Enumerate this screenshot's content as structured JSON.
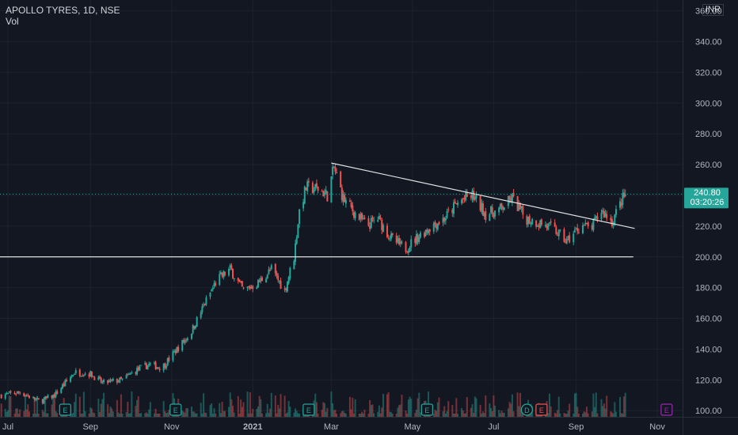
{
  "header": {
    "title": "APOLLO TYRES, 1D, NSE",
    "volume_label": "Vol"
  },
  "currency": "INR",
  "last_price": {
    "value": "240.80",
    "countdown": "03:20:26"
  },
  "colors": {
    "up": "#26a69a",
    "down": "#ef5350",
    "background": "#131722",
    "grid": "#1e222d",
    "axis_text": "#b2b5be",
    "trendline": "#e0e0e0",
    "earnings": "#26a69a",
    "earnings_down": "#ef5350",
    "dividend": "#26a69a",
    "future_event": "#9c27b0"
  },
  "chart_data": {
    "type": "candlestick",
    "symbol": "APOLLO TYRES",
    "interval": "1D",
    "exchange": "NSE",
    "yaxis": {
      "ticks": [
        "100.00",
        "120.00",
        "140.00",
        "160.00",
        "180.00",
        "200.00",
        "220.00",
        "240.00",
        "260.00",
        "280.00",
        "300.00",
        "320.00",
        "340.00",
        "360.00"
      ],
      "range": [
        96,
        367
      ]
    },
    "xaxis": {
      "ticks": [
        "Jul",
        "Sep",
        "Nov",
        "2021",
        "Mar",
        "May",
        "Jul",
        "Sep",
        "Nov"
      ],
      "range": [
        "2020-06-25",
        "2021-11-20"
      ]
    },
    "tick_dates": [
      "2020-07-01",
      "2020-09-01",
      "2020-11-01",
      "2021-01-01",
      "2021-03-01",
      "2021-05-01",
      "2021-07-01",
      "2021-09-01",
      "2021-11-01"
    ],
    "price_path": [
      [
        "2020-06-26",
        110
      ],
      [
        "2020-07-10",
        112
      ],
      [
        "2020-07-25",
        106
      ],
      [
        "2020-08-05",
        110
      ],
      [
        "2020-08-20",
        125
      ],
      [
        "2020-09-01",
        124
      ],
      [
        "2020-09-10",
        118
      ],
      [
        "2020-09-25",
        120
      ],
      [
        "2020-10-05",
        126
      ],
      [
        "2020-10-15",
        130
      ],
      [
        "2020-10-25",
        128
      ],
      [
        "2020-11-05",
        140
      ],
      [
        "2020-11-15",
        150
      ],
      [
        "2020-11-25",
        168
      ],
      [
        "2020-12-05",
        185
      ],
      [
        "2020-12-15",
        192
      ],
      [
        "2020-12-25",
        178
      ],
      [
        "2021-01-05",
        183
      ],
      [
        "2021-01-15",
        192
      ],
      [
        "2021-01-25",
        178
      ],
      [
        "2021-02-01",
        200
      ],
      [
        "2021-02-05",
        230
      ],
      [
        "2021-02-10",
        245
      ],
      [
        "2021-02-20",
        244
      ],
      [
        "2021-02-26",
        240
      ],
      [
        "2021-03-03",
        258
      ],
      [
        "2021-03-10",
        238
      ],
      [
        "2021-03-20",
        227
      ],
      [
        "2021-03-28",
        220
      ],
      [
        "2021-04-05",
        225
      ],
      [
        "2021-04-15",
        212
      ],
      [
        "2021-04-25",
        205
      ],
      [
        "2021-05-05",
        213
      ],
      [
        "2021-05-15",
        220
      ],
      [
        "2021-05-25",
        225
      ],
      [
        "2021-06-05",
        236
      ],
      [
        "2021-06-15",
        240
      ],
      [
        "2021-06-25",
        228
      ],
      [
        "2021-07-05",
        230
      ],
      [
        "2021-07-15",
        238
      ],
      [
        "2021-07-25",
        225
      ],
      [
        "2021-08-05",
        222
      ],
      [
        "2021-08-15",
        218
      ],
      [
        "2021-08-25",
        210
      ],
      [
        "2021-09-05",
        221
      ],
      [
        "2021-09-12",
        218
      ],
      [
        "2021-09-20",
        230
      ],
      [
        "2021-09-28",
        223
      ],
      [
        "2021-10-05",
        236
      ],
      [
        "2021-10-08",
        240.8
      ]
    ],
    "trendlines": [
      {
        "from": [
          "2021-03-01",
          261
        ],
        "to": [
          "2021-10-15",
          218.5
        ]
      },
      {
        "from": [
          "2020-06-25",
          200
        ],
        "to": [
          "2021-10-14",
          200
        ]
      }
    ],
    "events": [
      {
        "type": "earnings",
        "label": "E",
        "date": "2020-08-13"
      },
      {
        "type": "earnings",
        "label": "E",
        "date": "2020-11-04"
      },
      {
        "type": "earnings",
        "label": "E",
        "date": "2021-02-12"
      },
      {
        "type": "earnings",
        "label": "E",
        "date": "2021-05-12"
      },
      {
        "type": "dividend",
        "label": "D",
        "date": "2021-07-26"
      },
      {
        "type": "earnings_down",
        "label": "E",
        "date": "2021-08-06"
      },
      {
        "type": "future_event",
        "label": "E",
        "date": "2021-11-08"
      }
    ]
  }
}
